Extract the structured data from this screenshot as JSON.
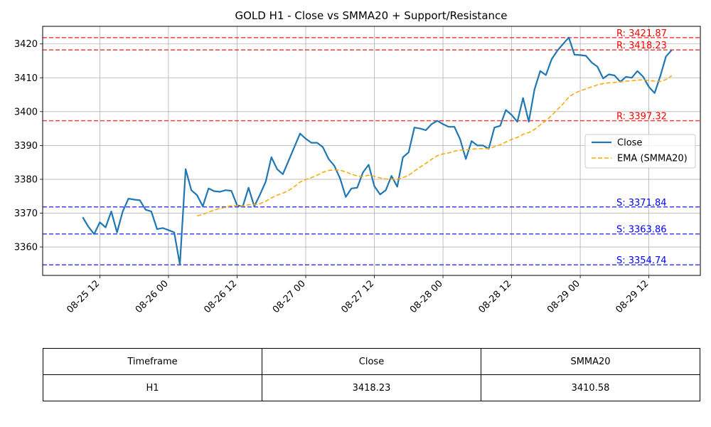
{
  "chart_data": {
    "type": "line",
    "title": "GOLD H1 - Close vs SMMA20 + Support/Resistance",
    "xlabel": "",
    "ylabel": "",
    "x_unit": "datetime (hourly)",
    "xlim": [
      "2025-08-25 02:00",
      "2025-08-29 21:00"
    ],
    "ylim": [
      3351.6,
      3425.2
    ],
    "x_ticks": [
      {
        "t": "2025-08-25 12:00",
        "label": "08-25 12"
      },
      {
        "t": "2025-08-26 00:00",
        "label": "08-26 00"
      },
      {
        "t": "2025-08-26 12:00",
        "label": "08-26 12"
      },
      {
        "t": "2025-08-27 00:00",
        "label": "08-27 00"
      },
      {
        "t": "2025-08-27 12:00",
        "label": "08-27 12"
      },
      {
        "t": "2025-08-28 00:00",
        "label": "08-28 00"
      },
      {
        "t": "2025-08-28 12:00",
        "label": "08-28 12"
      },
      {
        "t": "2025-08-29 00:00",
        "label": "08-29 00"
      },
      {
        "t": "2025-08-29 12:00",
        "label": "08-29 12"
      }
    ],
    "y_ticks": [
      3360,
      3370,
      3380,
      3390,
      3400,
      3410,
      3420
    ],
    "grid": true,
    "legend_position": "center-right",
    "series": [
      {
        "name": "Close",
        "color": "#1f77b4",
        "style": "solid",
        "points": [
          [
            "2025-08-25 09:00",
            3368.8
          ],
          [
            "2025-08-25 10:00",
            3366.0
          ],
          [
            "2025-08-25 11:00",
            3363.8
          ],
          [
            "2025-08-25 12:00",
            3367.3
          ],
          [
            "2025-08-25 13:00",
            3365.8
          ],
          [
            "2025-08-25 14:00",
            3370.5
          ],
          [
            "2025-08-25 15:00",
            3364.3
          ],
          [
            "2025-08-25 16:00",
            3370.5
          ],
          [
            "2025-08-25 17:00",
            3374.3
          ],
          [
            "2025-08-25 18:00",
            3374.0
          ],
          [
            "2025-08-25 19:00",
            3373.8
          ],
          [
            "2025-08-25 20:00",
            3371.0
          ],
          [
            "2025-08-25 21:00",
            3370.5
          ],
          [
            "2025-08-25 22:00",
            3365.3
          ],
          [
            "2025-08-25 23:00",
            3365.6
          ],
          [
            "2025-08-26 00:00",
            3365.0
          ],
          [
            "2025-08-26 01:00",
            3364.3
          ],
          [
            "2025-08-26 02:00",
            3354.8
          ],
          [
            "2025-08-26 03:00",
            3383.0
          ],
          [
            "2025-08-26 04:00",
            3376.8
          ],
          [
            "2025-08-26 05:00",
            3375.3
          ],
          [
            "2025-08-26 06:00",
            3372.0
          ],
          [
            "2025-08-26 07:00",
            3377.3
          ],
          [
            "2025-08-26 08:00",
            3376.5
          ],
          [
            "2025-08-26 09:00",
            3376.3
          ],
          [
            "2025-08-26 10:00",
            3376.8
          ],
          [
            "2025-08-26 11:00",
            3376.6
          ],
          [
            "2025-08-26 12:00",
            3372.3
          ],
          [
            "2025-08-26 13:00",
            3372.0
          ],
          [
            "2025-08-26 14:00",
            3377.5
          ],
          [
            "2025-08-26 15:00",
            3372.0
          ],
          [
            "2025-08-26 16:00",
            3375.5
          ],
          [
            "2025-08-26 17:00",
            3379.3
          ],
          [
            "2025-08-26 18:00",
            3386.5
          ],
          [
            "2025-08-26 19:00",
            3383.0
          ],
          [
            "2025-08-26 20:00",
            3381.5
          ],
          [
            "2025-08-26 21:00",
            3385.5
          ],
          [
            "2025-08-26 22:00",
            3389.5
          ],
          [
            "2025-08-26 23:00",
            3393.5
          ],
          [
            "2025-08-27 00:00",
            3392.0
          ],
          [
            "2025-08-27 01:00",
            3390.8
          ],
          [
            "2025-08-27 02:00",
            3390.8
          ],
          [
            "2025-08-27 03:00",
            3389.5
          ],
          [
            "2025-08-27 04:00",
            3386.0
          ],
          [
            "2025-08-27 05:00",
            3384.0
          ],
          [
            "2025-08-27 06:00",
            3380.3
          ],
          [
            "2025-08-27 07:00",
            3374.8
          ],
          [
            "2025-08-27 08:00",
            3377.3
          ],
          [
            "2025-08-27 09:00",
            3377.5
          ],
          [
            "2025-08-27 10:00",
            3382.0
          ],
          [
            "2025-08-27 11:00",
            3384.3
          ],
          [
            "2025-08-27 12:00",
            3378.0
          ],
          [
            "2025-08-27 13:00",
            3375.5
          ],
          [
            "2025-08-27 14:00",
            3376.8
          ],
          [
            "2025-08-27 15:00",
            3381.0
          ],
          [
            "2025-08-27 16:00",
            3377.8
          ],
          [
            "2025-08-27 17:00",
            3386.5
          ],
          [
            "2025-08-27 18:00",
            3388.0
          ],
          [
            "2025-08-27 19:00",
            3395.3
          ],
          [
            "2025-08-27 20:00",
            3395.0
          ],
          [
            "2025-08-27 21:00",
            3394.5
          ],
          [
            "2025-08-27 22:00",
            3396.3
          ],
          [
            "2025-08-27 23:00",
            3397.3
          ],
          [
            "2025-08-28 00:00",
            3396.3
          ],
          [
            "2025-08-28 01:00",
            3395.5
          ],
          [
            "2025-08-28 02:00",
            3395.5
          ],
          [
            "2025-08-28 03:00",
            3391.8
          ],
          [
            "2025-08-28 04:00",
            3386.0
          ],
          [
            "2025-08-28 05:00",
            3391.3
          ],
          [
            "2025-08-28 06:00",
            3390.0
          ],
          [
            "2025-08-28 07:00",
            3390.0
          ],
          [
            "2025-08-28 08:00",
            3389.0
          ],
          [
            "2025-08-28 09:00",
            3395.3
          ],
          [
            "2025-08-28 10:00",
            3395.8
          ],
          [
            "2025-08-28 11:00",
            3400.5
          ],
          [
            "2025-08-28 12:00",
            3399.0
          ],
          [
            "2025-08-28 13:00",
            3397.0
          ],
          [
            "2025-08-28 14:00",
            3404.0
          ],
          [
            "2025-08-28 15:00",
            3397.0
          ],
          [
            "2025-08-28 16:00",
            3406.5
          ],
          [
            "2025-08-28 17:00",
            3412.0
          ],
          [
            "2025-08-28 18:00",
            3410.8
          ],
          [
            "2025-08-28 19:00",
            3415.5
          ],
          [
            "2025-08-28 20:00",
            3418.0
          ],
          [
            "2025-08-28 21:00",
            3420.0
          ],
          [
            "2025-08-28 22:00",
            3421.9
          ],
          [
            "2025-08-28 23:00",
            3416.8
          ],
          [
            "2025-08-29 00:00",
            3416.7
          ],
          [
            "2025-08-29 01:00",
            3416.5
          ],
          [
            "2025-08-29 02:00",
            3414.5
          ],
          [
            "2025-08-29 03:00",
            3413.3
          ],
          [
            "2025-08-29 04:00",
            3409.8
          ],
          [
            "2025-08-29 05:00",
            3411.0
          ],
          [
            "2025-08-29 06:00",
            3410.7
          ],
          [
            "2025-08-29 07:00",
            3408.8
          ],
          [
            "2025-08-29 08:00",
            3410.3
          ],
          [
            "2025-08-29 09:00",
            3410.0
          ],
          [
            "2025-08-29 10:00",
            3412.0
          ],
          [
            "2025-08-29 11:00",
            3410.3
          ],
          [
            "2025-08-29 12:00",
            3407.3
          ],
          [
            "2025-08-29 13:00",
            3405.5
          ],
          [
            "2025-08-29 14:00",
            3410.5
          ],
          [
            "2025-08-29 15:00",
            3416.3
          ],
          [
            "2025-08-29 16:00",
            3418.2
          ]
        ]
      },
      {
        "name": "EMA (SMMA20)",
        "color": "#ffa500",
        "style": "dashed",
        "points": [
          [
            "2025-08-26 05:00",
            3369.2
          ],
          [
            "2025-08-26 06:00",
            3369.6
          ],
          [
            "2025-08-26 07:00",
            3370.3
          ],
          [
            "2025-08-26 08:00",
            3370.9
          ],
          [
            "2025-08-26 09:00",
            3371.4
          ],
          [
            "2025-08-26 10:00",
            3371.7
          ],
          [
            "2025-08-26 11:00",
            3372.2
          ],
          [
            "2025-08-26 12:00",
            3372.2
          ],
          [
            "2025-08-26 13:00",
            3372.1
          ],
          [
            "2025-08-26 14:00",
            3372.5
          ],
          [
            "2025-08-26 15:00",
            3372.5
          ],
          [
            "2025-08-26 16:00",
            3372.8
          ],
          [
            "2025-08-26 17:00",
            3373.5
          ],
          [
            "2025-08-26 18:00",
            3374.5
          ],
          [
            "2025-08-26 19:00",
            3375.3
          ],
          [
            "2025-08-26 20:00",
            3375.9
          ],
          [
            "2025-08-26 21:00",
            3376.7
          ],
          [
            "2025-08-26 22:00",
            3377.8
          ],
          [
            "2025-08-26 23:00",
            3379.2
          ],
          [
            "2025-08-27 00:00",
            3379.9
          ],
          [
            "2025-08-27 01:00",
            3380.5
          ],
          [
            "2025-08-27 02:00",
            3381.2
          ],
          [
            "2025-08-27 03:00",
            3382.1
          ],
          [
            "2025-08-27 04:00",
            3382.6
          ],
          [
            "2025-08-27 05:00",
            3382.8
          ],
          [
            "2025-08-27 06:00",
            3382.7
          ],
          [
            "2025-08-27 07:00",
            3382.2
          ],
          [
            "2025-08-27 08:00",
            3381.5
          ],
          [
            "2025-08-27 09:00",
            3381.0
          ],
          [
            "2025-08-27 10:00",
            3380.8
          ],
          [
            "2025-08-27 11:00",
            3381.2
          ],
          [
            "2025-08-27 12:00",
            3380.9
          ],
          [
            "2025-08-27 13:00",
            3380.4
          ],
          [
            "2025-08-27 14:00",
            3380.1
          ],
          [
            "2025-08-27 15:00",
            3380.0
          ],
          [
            "2025-08-27 16:00",
            3380.0
          ],
          [
            "2025-08-27 17:00",
            3380.5
          ],
          [
            "2025-08-27 18:00",
            3381.2
          ],
          [
            "2025-08-27 19:00",
            3382.4
          ],
          [
            "2025-08-27 20:00",
            3383.6
          ],
          [
            "2025-08-27 21:00",
            3384.7
          ],
          [
            "2025-08-27 22:00",
            3385.9
          ],
          [
            "2025-08-27 23:00",
            3387.0
          ],
          [
            "2025-08-28 00:00",
            3387.5
          ],
          [
            "2025-08-28 01:00",
            3387.8
          ],
          [
            "2025-08-28 02:00",
            3388.3
          ],
          [
            "2025-08-28 03:00",
            3388.6
          ],
          [
            "2025-08-28 04:00",
            3388.7
          ],
          [
            "2025-08-28 05:00",
            3388.9
          ],
          [
            "2025-08-28 06:00",
            3389.0
          ],
          [
            "2025-08-28 07:00",
            3389.1
          ],
          [
            "2025-08-28 08:00",
            3389.1
          ],
          [
            "2025-08-28 09:00",
            3389.6
          ],
          [
            "2025-08-28 10:00",
            3390.2
          ],
          [
            "2025-08-28 11:00",
            3391.0
          ],
          [
            "2025-08-28 12:00",
            3391.8
          ],
          [
            "2025-08-28 13:00",
            3392.4
          ],
          [
            "2025-08-28 14:00",
            3393.3
          ],
          [
            "2025-08-28 15:00",
            3393.8
          ],
          [
            "2025-08-28 16:00",
            3394.7
          ],
          [
            "2025-08-28 17:00",
            3396.1
          ],
          [
            "2025-08-28 18:00",
            3397.3
          ],
          [
            "2025-08-28 19:00",
            3398.9
          ],
          [
            "2025-08-28 20:00",
            3400.6
          ],
          [
            "2025-08-28 21:00",
            3402.3
          ],
          [
            "2025-08-28 22:00",
            3404.3
          ],
          [
            "2025-08-28 23:00",
            3405.4
          ],
          [
            "2025-08-29 00:00",
            3406.2
          ],
          [
            "2025-08-29 01:00",
            3406.7
          ],
          [
            "2025-08-29 02:00",
            3407.3
          ],
          [
            "2025-08-29 03:00",
            3407.9
          ],
          [
            "2025-08-29 04:00",
            3408.3
          ],
          [
            "2025-08-29 05:00",
            3408.5
          ],
          [
            "2025-08-29 06:00",
            3408.6
          ],
          [
            "2025-08-29 07:00",
            3408.8
          ],
          [
            "2025-08-29 08:00",
            3409.0
          ],
          [
            "2025-08-29 09:00",
            3409.1
          ],
          [
            "2025-08-29 10:00",
            3409.3
          ],
          [
            "2025-08-29 11:00",
            3409.4
          ],
          [
            "2025-08-29 12:00",
            3409.2
          ],
          [
            "2025-08-29 13:00",
            3409.0
          ],
          [
            "2025-08-29 14:00",
            3408.9
          ],
          [
            "2025-08-29 15:00",
            3409.5
          ],
          [
            "2025-08-29 16:00",
            3410.6
          ]
        ]
      }
    ],
    "levels": [
      {
        "kind": "resistance",
        "value": 3421.87,
        "label": "R: 3421.87",
        "color": "#ff0000"
      },
      {
        "kind": "resistance",
        "value": 3418.23,
        "label": "R: 3418.23",
        "color": "#ff0000"
      },
      {
        "kind": "resistance",
        "value": 3397.32,
        "label": "R: 3397.32",
        "color": "#ff0000"
      },
      {
        "kind": "support",
        "value": 3371.84,
        "label": "S: 3371.84",
        "color": "#0000ff"
      },
      {
        "kind": "support",
        "value": 3363.86,
        "label": "S: 3363.86",
        "color": "#0000ff"
      },
      {
        "kind": "support",
        "value": 3354.74,
        "label": "S: 3354.74",
        "color": "#0000ff"
      }
    ]
  },
  "table": {
    "headers": [
      "Timeframe",
      "Close",
      "SMMA20"
    ],
    "rows": [
      [
        "H1",
        "3418.23",
        "3410.58"
      ]
    ]
  }
}
